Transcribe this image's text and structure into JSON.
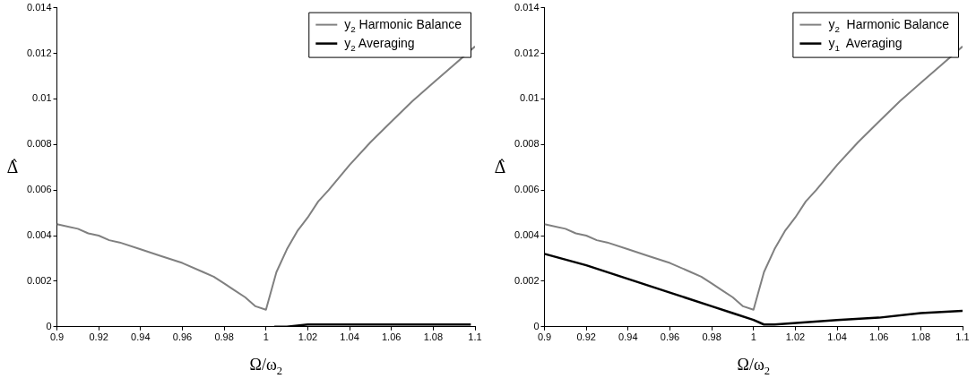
{
  "chart_data": [
    {
      "type": "line",
      "xlabel": "Ω/ω$_{2}$",
      "ylabel": "Δ̂",
      "xlim": [
        0.9,
        1.1
      ],
      "xticks": [
        0.9,
        0.92,
        0.94,
        0.96,
        0.98,
        1,
        1.02,
        1.04,
        1.06,
        1.08,
        1.1
      ],
      "ylim": [
        0,
        0.014
      ],
      "yticks": [
        0,
        0.002,
        0.004,
        0.006,
        0.008,
        0.01,
        0.012,
        0.014
      ],
      "grid": false,
      "legend": "top right",
      "marker": "none",
      "line_style": "solid",
      "series": [
        {
          "name": "y$_{2}$ Harmonic Balance",
          "color": "#808080",
          "x": [
            0.9,
            0.91,
            0.915,
            0.92,
            0.925,
            0.93,
            0.94,
            0.95,
            0.96,
            0.97,
            0.975,
            0.98,
            0.985,
            0.99,
            0.995,
            1.0,
            1.005,
            1.01,
            1.015,
            1.02,
            1.025,
            1.03,
            1.04,
            1.05,
            1.06,
            1.07,
            1.08,
            1.09,
            1.1
          ],
          "values": [
            0.0045,
            0.0043,
            0.0041,
            0.004,
            0.0038,
            0.0037,
            0.0034,
            0.0031,
            0.0028,
            0.0024,
            0.0022,
            0.0019,
            0.0016,
            0.0013,
            0.0009,
            0.00075,
            0.0024,
            0.0034,
            0.0042,
            0.0048,
            0.0055,
            0.006,
            0.0071,
            0.0081,
            0.009,
            0.0099,
            0.0107,
            0.0115,
            0.0123
          ]
        },
        {
          "name": "y$_{2}$ Averaging",
          "color": "#000000",
          "x": [
            1.004,
            1.01,
            1.02,
            1.04,
            1.06,
            1.08,
            1.098
          ],
          "values": [
            0,
            0,
            0.0001,
            0.0001,
            0.0001,
            0.0001,
            0.0001
          ]
        }
      ]
    },
    {
      "type": "line",
      "xlabel": "Ω/ω$_{2}$",
      "ylabel": "Δ̂",
      "xlim": [
        0.9,
        1.1
      ],
      "xticks": [
        0.9,
        0.92,
        0.94,
        0.96,
        0.98,
        1,
        1.02,
        1.04,
        1.06,
        1.08,
        1.1
      ],
      "ylim": [
        0,
        0.014
      ],
      "yticks": [
        0,
        0.002,
        0.004,
        0.006,
        0.008,
        0.01,
        0.012,
        0.014
      ],
      "grid": false,
      "legend": "top right",
      "marker": "none",
      "line_style": "solid",
      "series": [
        {
          "name": "y$_{2}$  Harmonic Balance",
          "color": "#808080",
          "x": [
            0.9,
            0.91,
            0.915,
            0.92,
            0.925,
            0.93,
            0.94,
            0.95,
            0.96,
            0.97,
            0.975,
            0.98,
            0.985,
            0.99,
            0.995,
            1.0,
            1.005,
            1.01,
            1.015,
            1.02,
            1.025,
            1.03,
            1.04,
            1.05,
            1.06,
            1.07,
            1.08,
            1.09,
            1.1
          ],
          "values": [
            0.0045,
            0.0043,
            0.0041,
            0.004,
            0.0038,
            0.0037,
            0.0034,
            0.0031,
            0.0028,
            0.0024,
            0.0022,
            0.0019,
            0.0016,
            0.0013,
            0.0009,
            0.00075,
            0.0024,
            0.0034,
            0.0042,
            0.0048,
            0.0055,
            0.006,
            0.0071,
            0.0081,
            0.009,
            0.0099,
            0.0107,
            0.0115,
            0.0123
          ]
        },
        {
          "name": "y$_{1}$  Averaging",
          "color": "#000000",
          "x": [
            0.9,
            0.92,
            0.94,
            0.96,
            0.98,
            0.99,
            1.0,
            1.005,
            1.01,
            1.04,
            1.06,
            1.08,
            1.1
          ],
          "values": [
            0.0032,
            0.0027,
            0.0021,
            0.0015,
            0.0009,
            0.0006,
            0.0003,
            0.0001,
            0.0001,
            0.0003,
            0.0004,
            0.0006,
            0.0007
          ]
        }
      ]
    }
  ]
}
